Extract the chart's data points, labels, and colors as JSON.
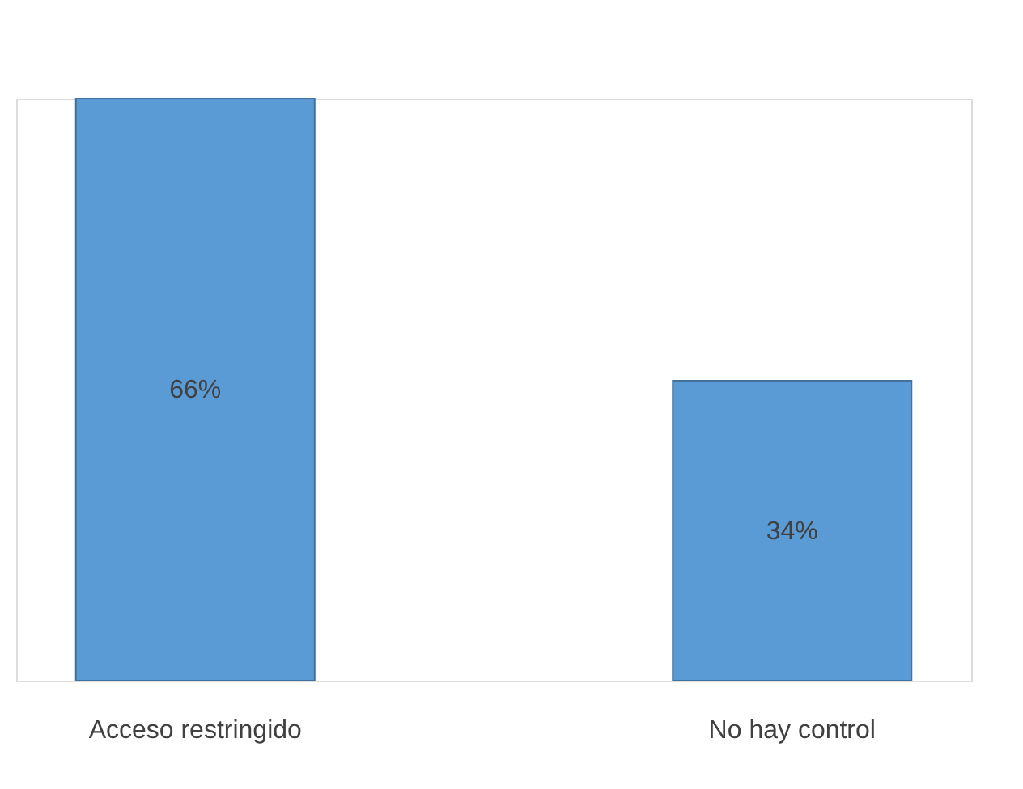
{
  "chart_data": {
    "type": "bar",
    "categories": [
      "Acceso restringido",
      "No hay control"
    ],
    "values": [
      66,
      34
    ],
    "value_labels": [
      "66%",
      "34%"
    ],
    "color": "#5b9bd5",
    "grid": false
  }
}
